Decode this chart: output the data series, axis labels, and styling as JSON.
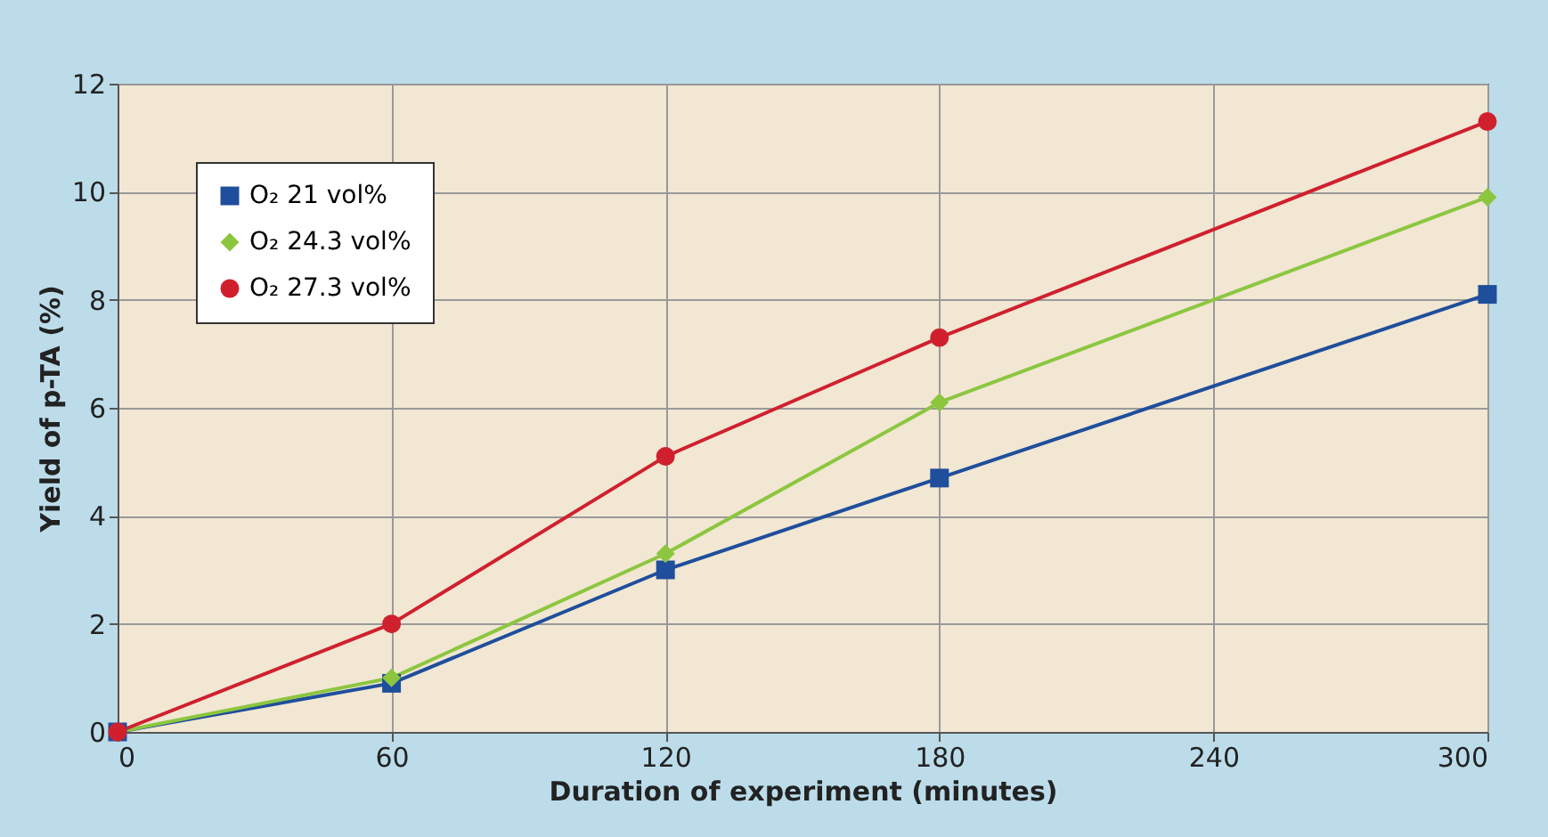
{
  "chart_data": {
    "type": "line",
    "xlabel": "Duration of experiment (minutes)",
    "ylabel": "Yield of p-TA (%)",
    "x": [
      0,
      60,
      120,
      180,
      300
    ],
    "xlim": [
      0,
      300
    ],
    "xticks": [
      0,
      60,
      120,
      180,
      240,
      300
    ],
    "ylim": [
      0,
      12
    ],
    "yticks": [
      0,
      2,
      4,
      6,
      8,
      10,
      12
    ],
    "grid": true,
    "legend": "top left",
    "line_style": "solid",
    "series": [
      {
        "name": "O₂ 21 vol%",
        "color": "#1f4e9c",
        "marker": "square",
        "values": [
          0,
          0.9,
          3.0,
          4.7,
          8.1
        ]
      },
      {
        "name": "O₂ 24.3 vol%",
        "color": "#8cc63f",
        "marker": "diamond",
        "values": [
          0,
          1.0,
          3.3,
          6.1,
          9.9
        ]
      },
      {
        "name": "O₂ 27.3 vol%",
        "color": "#d0202e",
        "marker": "circle",
        "values": [
          0,
          2.0,
          5.1,
          7.3,
          11.3
        ]
      }
    ]
  }
}
